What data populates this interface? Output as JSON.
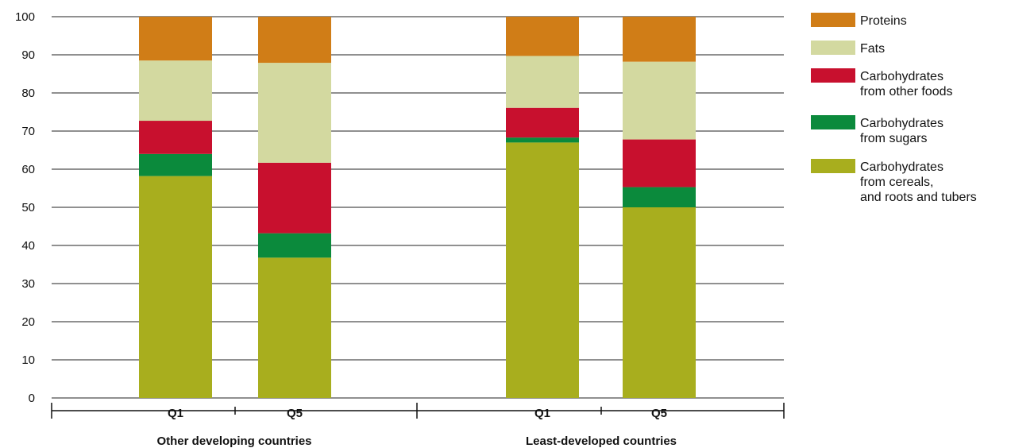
{
  "chart_data": {
    "type": "bar",
    "stacked": true,
    "title": "",
    "xlabel": "",
    "ylabel": "",
    "ylim": [
      0,
      100
    ],
    "yticks": [
      0,
      10,
      20,
      30,
      40,
      50,
      60,
      70,
      80,
      90,
      100
    ],
    "grid": true,
    "legend_position": "right",
    "groups": [
      {
        "label": "Other developing countries",
        "categories": [
          "Q1",
          "Q5"
        ]
      },
      {
        "label": "Least-developed countries",
        "categories": [
          "Q1",
          "Q5"
        ]
      }
    ],
    "categories": [
      "Q1",
      "Q5",
      "Q1",
      "Q5"
    ],
    "series": [
      {
        "name": "Carbohydrates from cereals, and roots and tubers",
        "color": "#a8ae1e",
        "values": [
          58.2,
          36.8,
          67.0,
          50.0
        ]
      },
      {
        "name": "Carbohydrates from sugars",
        "color": "#0b8a3c",
        "values": [
          5.8,
          6.4,
          1.3,
          5.3
        ]
      },
      {
        "name": "Carbohydrates from other foods",
        "color": "#c8102e",
        "values": [
          8.7,
          18.5,
          7.8,
          12.5
        ]
      },
      {
        "name": "Fats",
        "color": "#d3d9a0",
        "values": [
          15.8,
          26.2,
          13.6,
          20.4
        ]
      },
      {
        "name": "Proteins",
        "color": "#d07d17",
        "values": [
          11.5,
          12.1,
          10.3,
          11.8
        ]
      }
    ],
    "legend": [
      {
        "lines": [
          "Proteins"
        ],
        "color": "#d07d17"
      },
      {
        "lines": [
          "Fats"
        ],
        "color": "#d3d9a0"
      },
      {
        "lines": [
          "Carbohydrates",
          "from other foods"
        ],
        "color": "#c8102e"
      },
      {
        "lines": [
          "Carbohydrates",
          "from sugars"
        ],
        "color": "#0b8a3c"
      },
      {
        "lines": [
          "Carbohydrates",
          "from cereals,",
          "and roots and tubers"
        ],
        "color": "#a8ae1e"
      }
    ]
  }
}
